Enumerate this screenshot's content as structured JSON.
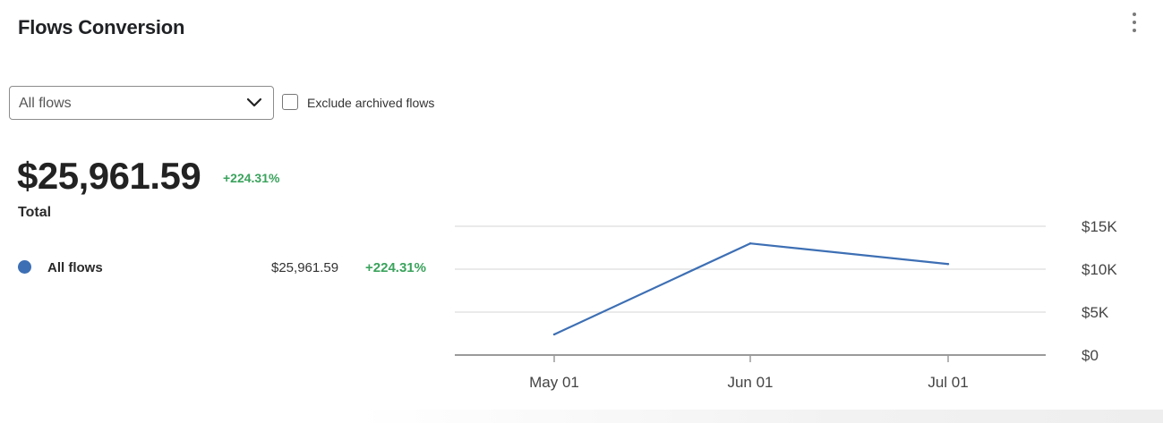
{
  "header": {
    "title": "Flows Conversion",
    "menu_icon": "more-vertical-icon"
  },
  "filters": {
    "flow_select": {
      "selected": "All flows",
      "icon": "chevron-down-icon"
    },
    "exclude_archived": {
      "label": "Exclude archived flows",
      "checked": false
    }
  },
  "summary": {
    "value": "$25,961.59",
    "change": "+224.31%",
    "label": "Total"
  },
  "legend": [
    {
      "name": "All flows",
      "value": "$25,961.59",
      "change": "+224.31%",
      "color": "#3d6fb4"
    }
  ],
  "colors": {
    "positive": "#3aa35c",
    "series": "#3d6fb4",
    "grid": "#d6d6d6",
    "axis": "#9a9a9a"
  },
  "chart_data": {
    "type": "line",
    "title": "",
    "xlabel": "",
    "ylabel": "",
    "x": [
      "May 01",
      "Jun 01",
      "Jul 01"
    ],
    "yticks": [
      0,
      5000,
      10000,
      15000
    ],
    "ytick_labels": [
      "$0",
      "$5K",
      "$10K",
      "$15K"
    ],
    "ylim": [
      0,
      15000
    ],
    "grid": true,
    "series": [
      {
        "name": "All flows",
        "values": [
          2400,
          13000,
          10600
        ]
      }
    ]
  }
}
